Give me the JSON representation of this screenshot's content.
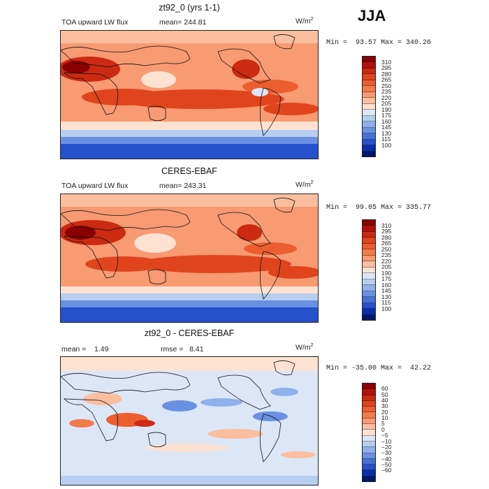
{
  "header": {
    "season": "JJA"
  },
  "panels": [
    {
      "title": "zt92_0 (yrs 1-1)",
      "left_label": "TOA upward LW flux",
      "center_label": "mean= 244.81",
      "units": "W/m",
      "units_exp": "2",
      "minmax": "Min =  93.57 Max = 340.26",
      "colorbar": {
        "labels": [
          "310",
          "295",
          "280",
          "265",
          "250",
          "235",
          "220",
          "205",
          "190",
          "175",
          "160",
          "145",
          "130",
          "115",
          "100"
        ],
        "colors": [
          "#8b0000",
          "#b3120c",
          "#cc2a12",
          "#e0441c",
          "#ec5e2f",
          "#f37a4a",
          "#f89a72",
          "#fbbe9f",
          "#fde2d2",
          "#dbe7f7",
          "#b6cef0",
          "#8fb0ea",
          "#6a90e2",
          "#4570d8",
          "#2650cc",
          "#0a2ea8",
          "#00156e"
        ]
      }
    },
    {
      "title": "CERES-EBAF",
      "left_label": "TOA upward LW flux",
      "center_label": "mean= 243.31",
      "units": "W/m",
      "units_exp": "2",
      "minmax": "Min =  99.05 Max = 335.77",
      "colorbar": {
        "labels": [
          "310",
          "295",
          "280",
          "265",
          "250",
          "235",
          "220",
          "205",
          "190",
          "175",
          "160",
          "145",
          "130",
          "115",
          "100"
        ],
        "colors": [
          "#8b0000",
          "#b3120c",
          "#cc2a12",
          "#e0441c",
          "#ec5e2f",
          "#f37a4a",
          "#f89a72",
          "#fbbe9f",
          "#fde2d2",
          "#dbe7f7",
          "#b6cef0",
          "#8fb0ea",
          "#6a90e2",
          "#4570d8",
          "#2650cc",
          "#0a2ea8",
          "#00156e"
        ]
      }
    },
    {
      "title": "zt92_0 - CERES-EBAF",
      "left_label": "mean =    1.49",
      "center_label": "rmse =   8.41",
      "units": "W/m",
      "units_exp": "2",
      "minmax": "Min = -35.00 Max =  42.22",
      "colorbar": {
        "labels": [
          "60",
          "50",
          "40",
          "30",
          "20",
          "10",
          "5",
          "0",
          "−5",
          "−10",
          "−20",
          "−30",
          "−40",
          "−50",
          "−60"
        ],
        "colors": [
          "#8b0000",
          "#b3120c",
          "#cc2a12",
          "#e0441c",
          "#ec5e2f",
          "#f37a4a",
          "#f89a72",
          "#fbbe9f",
          "#fde2d2",
          "#dbe7f7",
          "#b6cef0",
          "#8fb0ea",
          "#6a90e2",
          "#4570d8",
          "#2650cc",
          "#0a2ea8",
          "#00156e"
        ]
      }
    }
  ]
}
